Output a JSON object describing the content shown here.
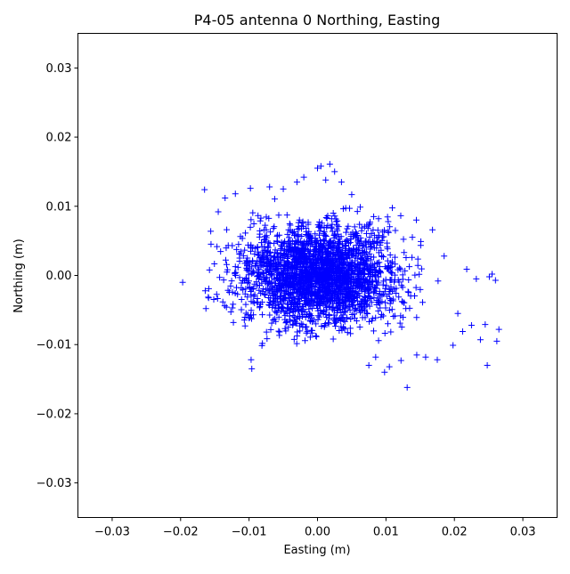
{
  "chart_data": {
    "type": "scatter",
    "title": "P4-05 antenna 0 Northing, Easting",
    "xlabel": "Easting (m)",
    "ylabel": "Northing (m)",
    "xlim": [
      -0.035,
      0.035
    ],
    "ylim": [
      -0.035,
      0.035
    ],
    "xticks": [
      -0.03,
      -0.02,
      -0.01,
      0.0,
      0.01,
      0.02,
      0.03
    ],
    "yticks": [
      -0.03,
      -0.02,
      -0.01,
      0.0,
      0.01,
      0.02,
      0.03
    ],
    "xtick_labels": [
      "−0.03",
      "−0.02",
      "−0.01",
      "0.00",
      "0.01",
      "0.02",
      "0.03"
    ],
    "ytick_labels": [
      "−0.03",
      "−0.02",
      "−0.01",
      "0.00",
      "0.01",
      "0.02",
      "0.03"
    ],
    "grid": false,
    "marker": "+",
    "color": "#0000ff",
    "distribution": {
      "center": [
        0.0,
        0.0
      ],
      "std": [
        0.0065,
        0.0042
      ],
      "count": 2500
    },
    "series": [
      {
        "x": [
          -0.0197,
          -0.0165,
          -0.0163,
          -0.0145,
          -0.0135,
          -0.012,
          -0.0098,
          -0.0097,
          -0.0096,
          -0.007,
          -0.005,
          -0.003,
          -0.002,
          0.0,
          0.0005,
          0.0012,
          0.0018,
          0.0025,
          0.0035,
          0.005,
          0.0075,
          0.0085,
          0.0098,
          0.0105,
          0.0122,
          0.0131,
          0.0145,
          0.0158,
          0.0168,
          0.0175,
          0.0185,
          0.0198,
          0.0205,
          0.0212,
          0.0218,
          0.0225,
          0.0232,
          0.0238,
          0.0245,
          0.0248,
          0.0251,
          0.0255,
          0.026,
          0.0262,
          0.0265
        ],
        "y": [
          -0.001,
          0.0124,
          -0.0048,
          0.0092,
          0.0112,
          0.0118,
          0.0126,
          -0.0122,
          -0.0135,
          0.0128,
          0.0125,
          0.0135,
          0.0142,
          0.0155,
          0.0158,
          0.0138,
          0.0161,
          0.015,
          0.0135,
          0.0117,
          -0.013,
          -0.0118,
          -0.014,
          -0.0132,
          -0.0123,
          -0.0162,
          -0.0115,
          -0.0118,
          0.0066,
          -0.0122,
          0.0028,
          -0.0101,
          -0.0055,
          -0.0081,
          0.0009,
          -0.0072,
          -0.0005,
          -0.0093,
          -0.0071,
          -0.013,
          -0.0002,
          0.0002,
          -0.0007,
          -0.0095,
          -0.0078
        ]
      }
    ]
  }
}
